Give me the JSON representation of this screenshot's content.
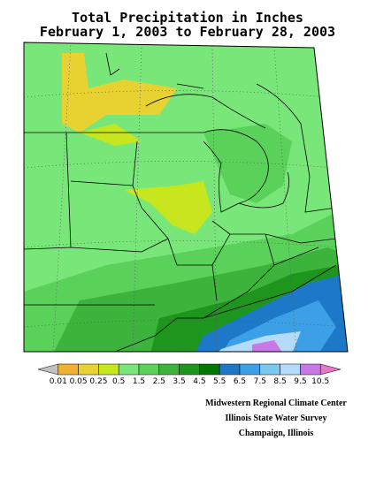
{
  "title": [
    "Total Precipitation in Inches",
    "February 1, 2003 to February 28, 2003"
  ],
  "legend": {
    "colors": [
      "#c0c0c0",
      "#f0b030",
      "#e8d232",
      "#c8e61e",
      "#78e678",
      "#5ad25a",
      "#3cb43c",
      "#1e961e",
      "#007800",
      "#1e78c8",
      "#3ca0e6",
      "#78c8f0",
      "#b4dcfa",
      "#c878e6",
      "#e678c8"
    ],
    "labels": [
      "0.01",
      "0.05",
      "0.25",
      "0.5",
      "1.5",
      "2.5",
      "3.5",
      "4.5",
      "5.5",
      "6.5",
      "7.5",
      "8.5",
      "9.5",
      "10.5"
    ]
  },
  "credits": [
    "Midwestern Regional Climate Center",
    "Illinois State Water Survey",
    "Champaign, Illinois"
  ]
}
